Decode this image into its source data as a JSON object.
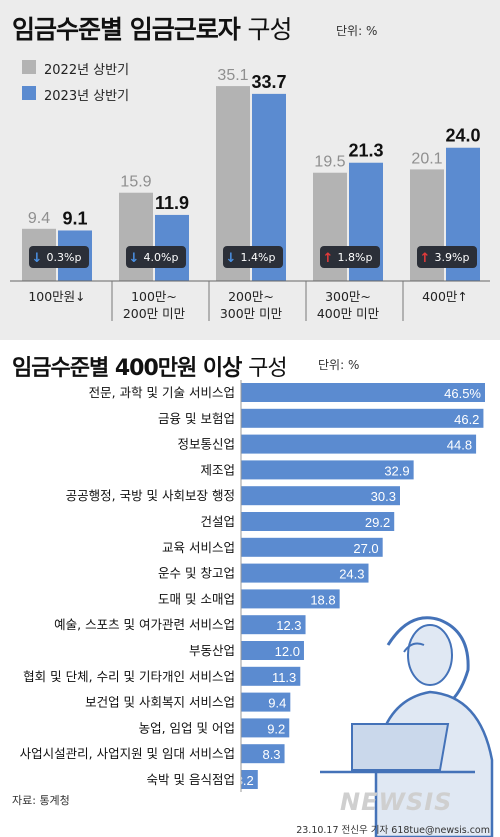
{
  "header": {
    "title_bold": "임금수준별 임금근로자",
    "title_light": "구성",
    "unit": "단위: %"
  },
  "legend": [
    {
      "label": "2022년 상반기",
      "color": "#b3b3b3"
    },
    {
      "label": "2023년 상반기",
      "color": "#5b8bd0"
    }
  ],
  "chart_data": [
    {
      "type": "bar",
      "categories": [
        "100만원↓",
        "100만~\n200만 미만",
        "200만~\n300만 미만",
        "300만~\n400만 미만",
        "400만↑"
      ],
      "series": [
        {
          "name": "2022년 상반기",
          "values": [
            9.4,
            15.9,
            35.1,
            19.5,
            20.1
          ]
        },
        {
          "name": "2023년 상반기",
          "values": [
            9.1,
            11.9,
            33.7,
            21.3,
            24.0
          ]
        }
      ],
      "changes": [
        {
          "direction": "down",
          "label": "0.3%p"
        },
        {
          "direction": "down",
          "label": "4.0%p"
        },
        {
          "direction": "down",
          "label": "1.4%p"
        },
        {
          "direction": "up",
          "label": "1.8%p"
        },
        {
          "direction": "up",
          "label": "3.9%p"
        }
      ],
      "ylim": [
        0,
        40
      ]
    },
    {
      "type": "bar",
      "orientation": "horizontal",
      "categories": [
        "전문, 과학 및 기술 서비스업",
        "금융 및 보험업",
        "정보통신업",
        "제조업",
        "공공행정, 국방 및 사회보장 행정",
        "건설업",
        "교육 서비스업",
        "운수 및 창고업",
        "도매 및 소매업",
        "예술, 스포츠 및 여가관련 서비스업",
        "부동산업",
        "협회 및 단체, 수리 및 기타개인 서비스업",
        "보건업 및 사회복지 서비스업",
        "농업, 임업 및 어업",
        "사업시설관리, 사업지원 및 임대 서비스업",
        "숙박 및 음식점업"
      ],
      "values": [
        46.5,
        46.2,
        44.8,
        32.9,
        30.3,
        29.2,
        27.0,
        24.3,
        18.8,
        12.3,
        12.0,
        11.3,
        9.4,
        9.2,
        8.3,
        3.2
      ],
      "value_labels": [
        "46.5%",
        "46.2",
        "44.8",
        "32.9",
        "30.3",
        "29.2",
        "27.0",
        "24.3",
        "18.8",
        "12.3",
        "12.0",
        "11.3",
        "9.4",
        "9.2",
        "8.3",
        "3.2"
      ],
      "xlim": [
        0,
        50
      ]
    }
  ],
  "section2": {
    "title_bold": "임금수준별 400만원 이상",
    "title_light": "구성",
    "unit": "단위: %"
  },
  "footer": {
    "source": "자료: 통계청",
    "credit": "23.10.17 전신우 기자 618tue@newsis.com",
    "watermark": "NEWSIS"
  },
  "colors": {
    "gray": "#b3b3b3",
    "blue": "#5b8bd0",
    "badge_bg": "#2b2f38",
    "down_arrow": "#4a90e2",
    "up_arrow": "#e23a3a"
  }
}
